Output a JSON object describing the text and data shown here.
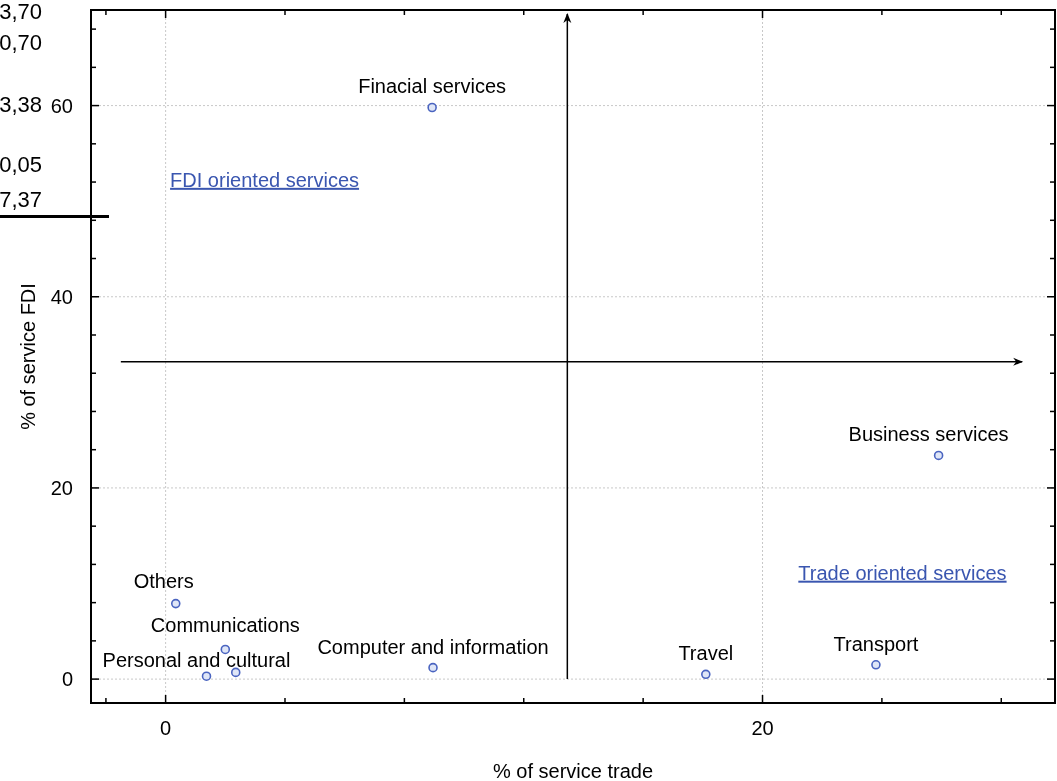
{
  "chart_data": {
    "type": "scatter",
    "xlabel": "% of service trade",
    "ylabel": "% of service FDI",
    "series": [
      {
        "name": "Finacial services",
        "color": "#4a64c0",
        "x": [
          8.93
        ],
        "values": [
          59.8
        ]
      },
      {
        "name": "Business services",
        "color": "#4a64c0",
        "x": [
          25.9
        ],
        "values": [
          23.4
        ]
      },
      {
        "name": "Others",
        "color": "#4a64c0",
        "x": [
          0.34
        ],
        "values": [
          7.9
        ]
      },
      {
        "name": "Communications",
        "color": "#4a64c0",
        "x": [
          2.0
        ],
        "values": [
          3.1
        ]
      },
      {
        "name": "Personal and cultural",
        "color": "#4a64c0",
        "x": [
          1.37
        ],
        "values": [
          0.3
        ]
      },
      {
        "color": "#4a64c0",
        "x": [
          2.35
        ],
        "values": [
          0.7
        ]
      },
      {
        "name": "Computer and information",
        "color": "#4a64c0",
        "x": [
          8.96
        ],
        "values": [
          1.2
        ]
      },
      {
        "name": "Travel",
        "color": "#4a64c0",
        "x": [
          18.1
        ],
        "values": [
          0.5
        ]
      },
      {
        "name": "Transport",
        "color": "#4a64c0",
        "x": [
          23.8
        ],
        "values": [
          1.5
        ]
      }
    ],
    "xlim": [
      -2.5,
      29.8
    ],
    "ylim": [
      -2.5,
      70
    ],
    "xticks": [
      {
        "value": -2,
        "label": null
      },
      0,
      {
        "value": 4,
        "label": null
      },
      {
        "value": 8,
        "label": null
      },
      {
        "value": 12,
        "label": null
      },
      {
        "value": 16,
        "label": null
      },
      20,
      {
        "value": 24,
        "label": null
      },
      {
        "value": 28,
        "label": null
      }
    ],
    "yticks": [
      0,
      {
        "value": 4,
        "label": null
      },
      {
        "value": 8,
        "label": null
      },
      {
        "value": 12,
        "label": null
      },
      {
        "value": 16,
        "label": null
      },
      20,
      {
        "value": 24,
        "label": null
      },
      {
        "value": 28,
        "label": null
      },
      {
        "value": 32,
        "label": null
      },
      {
        "value": 36,
        "label": null
      },
      40,
      {
        "value": 44,
        "label": null
      },
      {
        "value": 48,
        "label": null
      },
      {
        "value": 52,
        "label": null
      },
      {
        "value": 56,
        "label": null
      },
      60,
      {
        "value": 64,
        "label": null
      },
      {
        "value": 68,
        "label": null
      }
    ],
    "grid": true,
    "marker": "circle",
    "ref_lines": [
      {
        "axis": "x",
        "value": 13.46
      },
      {
        "axis": "y",
        "value": 33.2
      }
    ],
    "annotations": [
      "FDI oriented services",
      "Trade oriented services",
      "3,70",
      "0,70",
      "3,38",
      "0,05",
      "7,37"
    ]
  }
}
